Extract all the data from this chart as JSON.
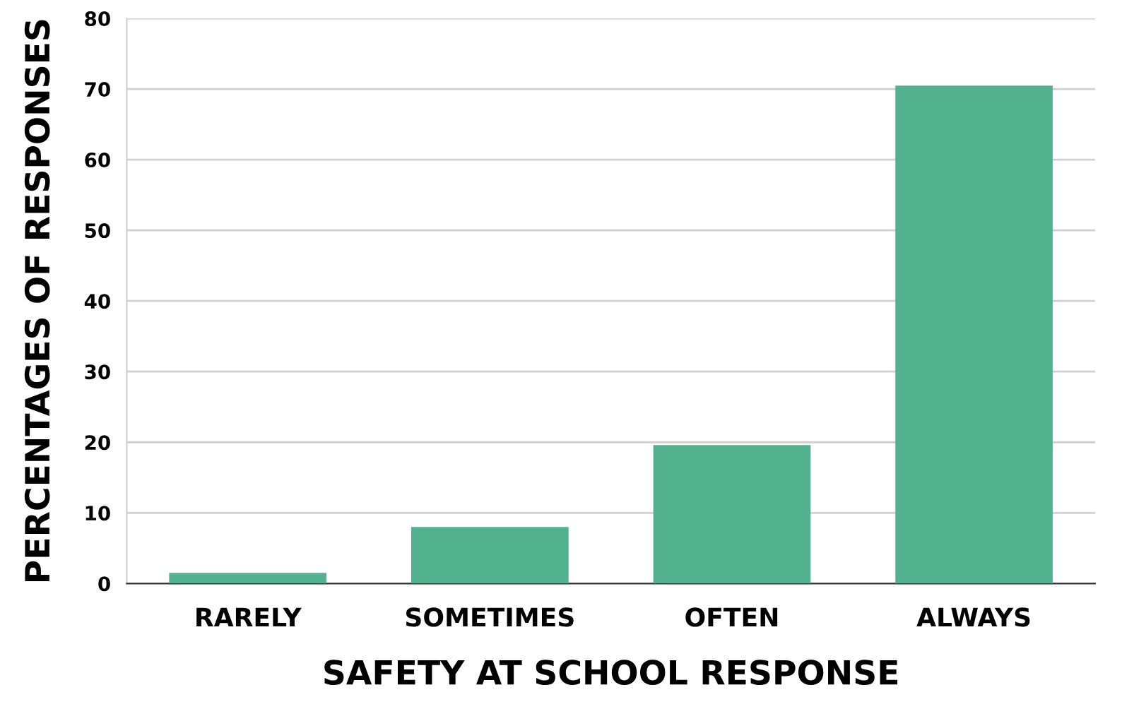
{
  "chart_data": {
    "type": "bar",
    "xlabel": "SAFETY AT SCHOOL RESPONSE",
    "ylabel": "PERCENTAGES OF RESPONSES",
    "categories": [
      "RARELY",
      "SOMETIMES",
      "OFTEN",
      "ALWAYS"
    ],
    "values": [
      1.5,
      8,
      19.6,
      70.5
    ],
    "color": "#52b18f",
    "ylim": [
      0,
      80
    ],
    "yticks": [
      0,
      10,
      20,
      30,
      40,
      50,
      60,
      70,
      80
    ],
    "grid": "y"
  }
}
